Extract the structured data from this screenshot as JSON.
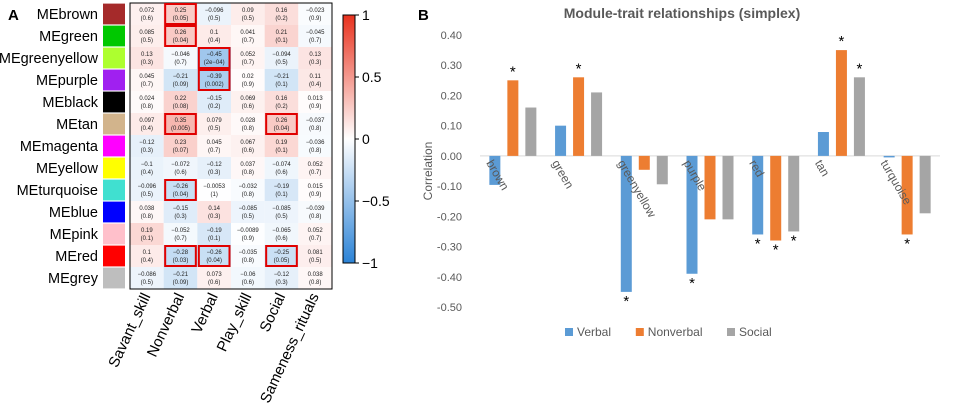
{
  "panel_a": {
    "label": "A",
    "modules": [
      {
        "name": "MEbrown",
        "color": "#A52A2A"
      },
      {
        "name": "MEgreen",
        "color": "#00C800"
      },
      {
        "name": "MEgreenyellow",
        "color": "#ADFF2F"
      },
      {
        "name": "MEpurple",
        "color": "#A020F0"
      },
      {
        "name": "MEblack",
        "color": "#000000"
      },
      {
        "name": "MEtan",
        "color": "#D2B48C"
      },
      {
        "name": "MEmagenta",
        "color": "#FF00FF"
      },
      {
        "name": "MEyellow",
        "color": "#FFFF00"
      },
      {
        "name": "MEturquoise",
        "color": "#40E0D0"
      },
      {
        "name": "MEblue",
        "color": "#0000FF"
      },
      {
        "name": "MEpink",
        "color": "#FFC0CB"
      },
      {
        "name": "MEred",
        "color": "#FF0000"
      },
      {
        "name": "MEgrey",
        "color": "#BEBEBE"
      }
    ],
    "traits": [
      "Savant_skill",
      "Nonverbal",
      "Verbal",
      "Play_skill",
      "Social",
      "Sameness_rituals"
    ],
    "cells": [
      [
        {
          "r": "0.072",
          "p": "(0.6)"
        },
        {
          "r": "0.25",
          "p": "(0.05)",
          "box": true
        },
        {
          "r": "−0.096",
          "p": "(0.5)"
        },
        {
          "r": "0.09",
          "p": "(0.5)"
        },
        {
          "r": "0.16",
          "p": "(0.2)"
        },
        {
          "r": "−0.023",
          "p": "(0.9)"
        }
      ],
      [
        {
          "r": "0.085",
          "p": "(0.5)"
        },
        {
          "r": "0.26",
          "p": "(0.04)",
          "box": true
        },
        {
          "r": "0.1",
          "p": "(0.4)"
        },
        {
          "r": "0.041",
          "p": "(0.7)"
        },
        {
          "r": "0.21",
          "p": "(0.1)"
        },
        {
          "r": "−0.045",
          "p": "(0.7)"
        }
      ],
      [
        {
          "r": "0.13",
          "p": "(0.3)"
        },
        {
          "r": "−0.046",
          "p": "(0.7)"
        },
        {
          "r": "−0.45",
          "p": "(2e−04)",
          "box": true
        },
        {
          "r": "0.052",
          "p": "(0.7)"
        },
        {
          "r": "−0.094",
          "p": "(0.5)"
        },
        {
          "r": "0.13",
          "p": "(0.3)"
        }
      ],
      [
        {
          "r": "0.045",
          "p": "(0.7)"
        },
        {
          "r": "−0.21",
          "p": "(0.09)"
        },
        {
          "r": "−0.39",
          "p": "(0.002)",
          "box": true
        },
        {
          "r": "0.02",
          "p": "(0.9)"
        },
        {
          "r": "−0.21",
          "p": "(0.1)"
        },
        {
          "r": "0.11",
          "p": "(0.4)"
        }
      ],
      [
        {
          "r": "0.024",
          "p": "(0.8)"
        },
        {
          "r": "0.22",
          "p": "(0.08)"
        },
        {
          "r": "−0.15",
          "p": "(0.2)"
        },
        {
          "r": "0.069",
          "p": "(0.6)"
        },
        {
          "r": "0.16",
          "p": "(0.2)"
        },
        {
          "r": "0.013",
          "p": "(0.9)"
        }
      ],
      [
        {
          "r": "0.097",
          "p": "(0.4)"
        },
        {
          "r": "0.35",
          "p": "(0.005)",
          "box": true
        },
        {
          "r": "0.079",
          "p": "(0.5)"
        },
        {
          "r": "0.028",
          "p": "(0.8)"
        },
        {
          "r": "0.26",
          "p": "(0.04)",
          "box": true
        },
        {
          "r": "−0.037",
          "p": "(0.8)"
        }
      ],
      [
        {
          "r": "−0.12",
          "p": "(0.3)"
        },
        {
          "r": "0.23",
          "p": "(0.07)"
        },
        {
          "r": "0.045",
          "p": "(0.7)"
        },
        {
          "r": "0.067",
          "p": "(0.6)"
        },
        {
          "r": "0.19",
          "p": "(0.1)"
        },
        {
          "r": "−0.036",
          "p": "(0.8)"
        }
      ],
      [
        {
          "r": "−0.1",
          "p": "(0.4)"
        },
        {
          "r": "−0.072",
          "p": "(0.6)"
        },
        {
          "r": "−0.12",
          "p": "(0.3)"
        },
        {
          "r": "0.037",
          "p": "(0.8)"
        },
        {
          "r": "−0.074",
          "p": "(0.6)"
        },
        {
          "r": "0.052",
          "p": "(0.7)"
        }
      ],
      [
        {
          "r": "−0.096",
          "p": "(0.5)"
        },
        {
          "r": "−0.26",
          "p": "(0.04)",
          "box": true
        },
        {
          "r": "−0.0053",
          "p": "(1)"
        },
        {
          "r": "−0.032",
          "p": "(0.8)"
        },
        {
          "r": "−0.19",
          "p": "(0.1)"
        },
        {
          "r": "0.015",
          "p": "(0.9)"
        }
      ],
      [
        {
          "r": "0.038",
          "p": "(0.8)"
        },
        {
          "r": "−0.15",
          "p": "(0.3)"
        },
        {
          "r": "0.14",
          "p": "(0.3)"
        },
        {
          "r": "−0.085",
          "p": "(0.5)"
        },
        {
          "r": "−0.085",
          "p": "(0.5)"
        },
        {
          "r": "−0.039",
          "p": "(0.8)"
        }
      ],
      [
        {
          "r": "0.19",
          "p": "(0.1)"
        },
        {
          "r": "−0.052",
          "p": "(0.7)"
        },
        {
          "r": "−0.19",
          "p": "(0.1)"
        },
        {
          "r": "−0.0089",
          "p": "(0.9)"
        },
        {
          "r": "−0.065",
          "p": "(0.6)"
        },
        {
          "r": "0.052",
          "p": "(0.7)"
        }
      ],
      [
        {
          "r": "0.1",
          "p": "(0.4)"
        },
        {
          "r": "−0.28",
          "p": "(0.03)",
          "box": true
        },
        {
          "r": "−0.26",
          "p": "(0.04)",
          "box": true
        },
        {
          "r": "−0.035",
          "p": "(0.8)"
        },
        {
          "r": "−0.25",
          "p": "(0.05)",
          "box": true
        },
        {
          "r": "0.081",
          "p": "(0.5)"
        }
      ],
      [
        {
          "r": "−0.086",
          "p": "(0.5)"
        },
        {
          "r": "−0.21",
          "p": "(0.09)"
        },
        {
          "r": "0.073",
          "p": "(0.6)"
        },
        {
          "r": "−0.06",
          "p": "(0.6)"
        },
        {
          "r": "−0.12",
          "p": "(0.3)"
        },
        {
          "r": "0.038",
          "p": "(0.8)"
        }
      ]
    ],
    "colorbar": {
      "ticks": [
        "1",
        "0.5",
        "0",
        "−0.5",
        "−1"
      ],
      "low_color": "#2B83D6",
      "mid_color": "#FFFFFF",
      "high_color": "#E8321E"
    }
  },
  "chart_data": {
    "type": "bar",
    "panel_label": "B",
    "title": "Module-trait relationships (simplex)",
    "xlabel": "",
    "ylabel": "Correlation",
    "ylim": [
      -0.5,
      0.4
    ],
    "yticks": [
      "0.40",
      "0.30",
      "0.20",
      "0.10",
      "0.00",
      "-0.10",
      "-0.20",
      "-0.30",
      "-0.40",
      "-0.50"
    ],
    "ytick_values": [
      0.4,
      0.3,
      0.2,
      0.1,
      0.0,
      -0.1,
      -0.2,
      -0.3,
      -0.4,
      -0.5
    ],
    "categories": [
      "brown",
      "green",
      "greenyellow",
      "purple",
      "red",
      "tan",
      "turquoise"
    ],
    "series": [
      {
        "name": "Verbal",
        "color": "#5B9BD5",
        "values": [
          -0.096,
          0.1,
          -0.45,
          -0.39,
          -0.26,
          0.079,
          -0.005
        ],
        "sig": [
          false,
          false,
          true,
          true,
          true,
          false,
          false
        ]
      },
      {
        "name": "Nonverbal",
        "color": "#ED7D31",
        "values": [
          0.25,
          0.26,
          -0.046,
          -0.21,
          -0.28,
          0.35,
          -0.26
        ],
        "sig": [
          true,
          true,
          false,
          false,
          true,
          true,
          true
        ]
      },
      {
        "name": "Social",
        "color": "#A5A5A5",
        "values": [
          0.16,
          0.21,
          -0.094,
          -0.21,
          -0.25,
          0.26,
          -0.19
        ],
        "sig": [
          false,
          false,
          false,
          false,
          true,
          true,
          false
        ]
      }
    ],
    "sig_marker": "*",
    "grid": false,
    "legend": "bottom"
  }
}
